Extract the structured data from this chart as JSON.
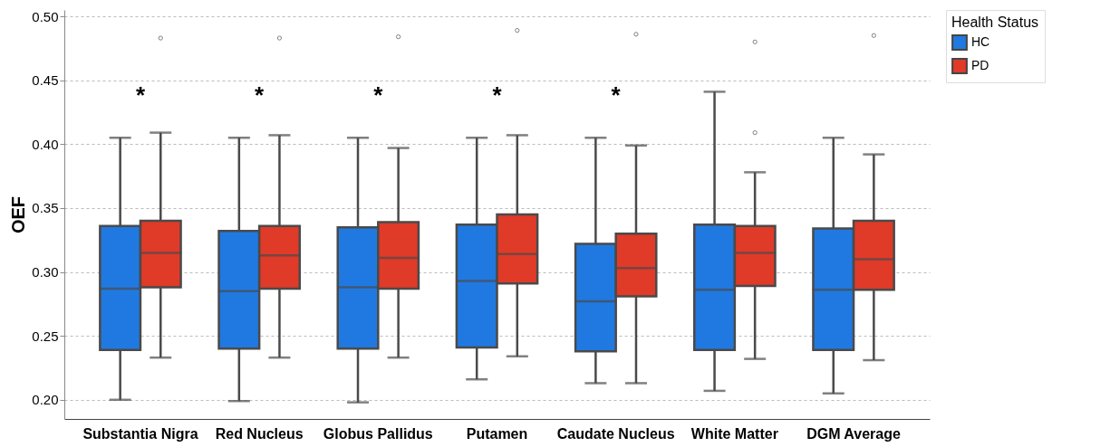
{
  "chart_data": {
    "type": "box",
    "ylabel": "OEF",
    "legend_title": "Health Status",
    "legend": "right",
    "grid": "y",
    "categories": [
      "Substantia Nigra",
      "Red Nucleus",
      "Globus Pallidus",
      "Putamen",
      "Caudate Nucleus",
      "White Matter",
      "DGM Average"
    ],
    "ylim": [
      0.185,
      0.505
    ],
    "yticks": [
      {
        "value": 0.2,
        "label": "0.20"
      },
      0.25,
      {
        "value": 0.3,
        "label": "0.30"
      },
      0.35,
      {
        "value": 0.4,
        "label": "0.40"
      },
      0.45,
      {
        "value": 0.5,
        "label": "0.50"
      }
    ],
    "series": [
      {
        "name": "HC",
        "color": "#2079e0",
        "boxes": [
          {
            "low": 0.2,
            "q1": 0.239,
            "median": 0.287,
            "q3": 0.336,
            "high": 0.405
          },
          {
            "low": 0.199,
            "q1": 0.24,
            "median": 0.285,
            "q3": 0.332,
            "high": 0.405
          },
          {
            "low": 0.198,
            "q1": 0.24,
            "median": 0.288,
            "q3": 0.335,
            "high": 0.405
          },
          {
            "low": 0.216,
            "q1": 0.241,
            "median": 0.293,
            "q3": 0.337,
            "high": 0.405
          },
          {
            "low": 0.213,
            "q1": 0.238,
            "median": 0.277,
            "q3": 0.322,
            "high": 0.405
          },
          {
            "low": 0.207,
            "q1": 0.239,
            "median": 0.286,
            "q3": 0.337,
            "high": 0.441
          },
          {
            "low": 0.205,
            "q1": 0.239,
            "median": 0.286,
            "q3": 0.334,
            "high": 0.405
          }
        ]
      },
      {
        "name": "PD",
        "color": "#e03a28",
        "boxes": [
          {
            "low": 0.233,
            "q1": 0.288,
            "median": 0.315,
            "q3": 0.34,
            "high": 0.409,
            "outliers": [
              0.483
            ]
          },
          {
            "low": 0.233,
            "q1": 0.287,
            "median": 0.313,
            "q3": 0.336,
            "high": 0.407,
            "outliers": [
              0.483
            ]
          },
          {
            "low": 0.233,
            "q1": 0.287,
            "median": 0.311,
            "q3": 0.339,
            "high": 0.397,
            "outliers": [
              0.484
            ]
          },
          {
            "low": 0.234,
            "q1": 0.291,
            "median": 0.314,
            "q3": 0.345,
            "high": 0.407,
            "outliers": [
              0.489
            ]
          },
          {
            "low": 0.213,
            "q1": 0.281,
            "median": 0.303,
            "q3": 0.33,
            "high": 0.399,
            "outliers": [
              0.486
            ]
          },
          {
            "low": 0.232,
            "q1": 0.289,
            "median": 0.315,
            "q3": 0.336,
            "high": 0.378,
            "outliers": [
              0.48,
              0.409
            ]
          },
          {
            "low": 0.231,
            "q1": 0.286,
            "median": 0.31,
            "q3": 0.34,
            "high": 0.392,
            "outliers": [
              0.485
            ]
          }
        ]
      }
    ],
    "annotations": [
      "*",
      "*",
      "*",
      "*",
      "*"
    ]
  }
}
